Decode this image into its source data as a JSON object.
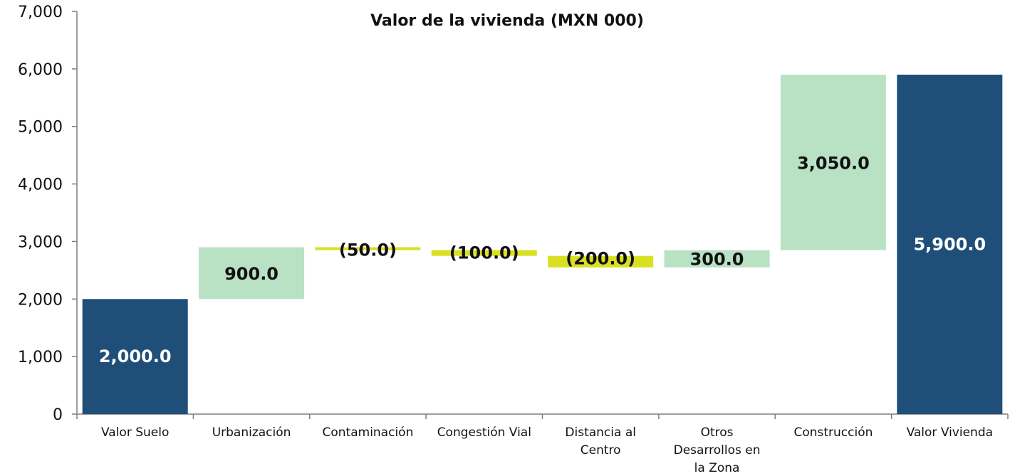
{
  "chart_data": {
    "type": "bar",
    "subtype": "waterfall",
    "title": "Valor de la vivienda (MXN 000)",
    "xlabel": "",
    "ylabel": "",
    "ylim": [
      0,
      7000
    ],
    "yticks": [
      {
        "value": 0,
        "label": "0"
      },
      {
        "value": 1000,
        "label": "1,000"
      },
      {
        "value": 2000,
        "label": "2,000"
      },
      {
        "value": 3000,
        "label": "3,000"
      },
      {
        "value": 4000,
        "label": "4,000"
      },
      {
        "value": 5000,
        "label": "5,000"
      },
      {
        "value": 6000,
        "label": "6,000"
      },
      {
        "value": 7000,
        "label": "7,000"
      }
    ],
    "grid": false,
    "legend": "none",
    "colors": {
      "total": "#1f4e79",
      "increase": "#b9e2c5",
      "decrease": "#d9e021",
      "label_on_total": "#ffffff",
      "label_default": "#111111"
    },
    "bars": [
      {
        "category": [
          "Valor Suelo"
        ],
        "kind": "total",
        "start": 0,
        "end": 2000,
        "label": "2,000.0"
      },
      {
        "category": [
          "Urbanización"
        ],
        "kind": "increase",
        "start": 2000,
        "end": 2900,
        "label": "900.0"
      },
      {
        "category": [
          "Contaminación"
        ],
        "kind": "decrease",
        "start": 2900,
        "end": 2850,
        "label": "(50.0)"
      },
      {
        "category": [
          "Congestión Vial"
        ],
        "kind": "decrease",
        "start": 2850,
        "end": 2750,
        "label": "(100.0)"
      },
      {
        "category": [
          "Distancia al",
          "Centro"
        ],
        "kind": "decrease",
        "start": 2750,
        "end": 2550,
        "label": "(200.0)"
      },
      {
        "category": [
          "Otros",
          "Desarrollos en",
          "la Zona"
        ],
        "kind": "increase",
        "start": 2550,
        "end": 2850,
        "label": "300.0"
      },
      {
        "category": [
          "Construcción"
        ],
        "kind": "increase",
        "start": 2850,
        "end": 5900,
        "label": "3,050.0"
      },
      {
        "category": [
          "Valor Vivienda"
        ],
        "kind": "total",
        "start": 0,
        "end": 5900,
        "label": "5,900.0"
      }
    ]
  }
}
